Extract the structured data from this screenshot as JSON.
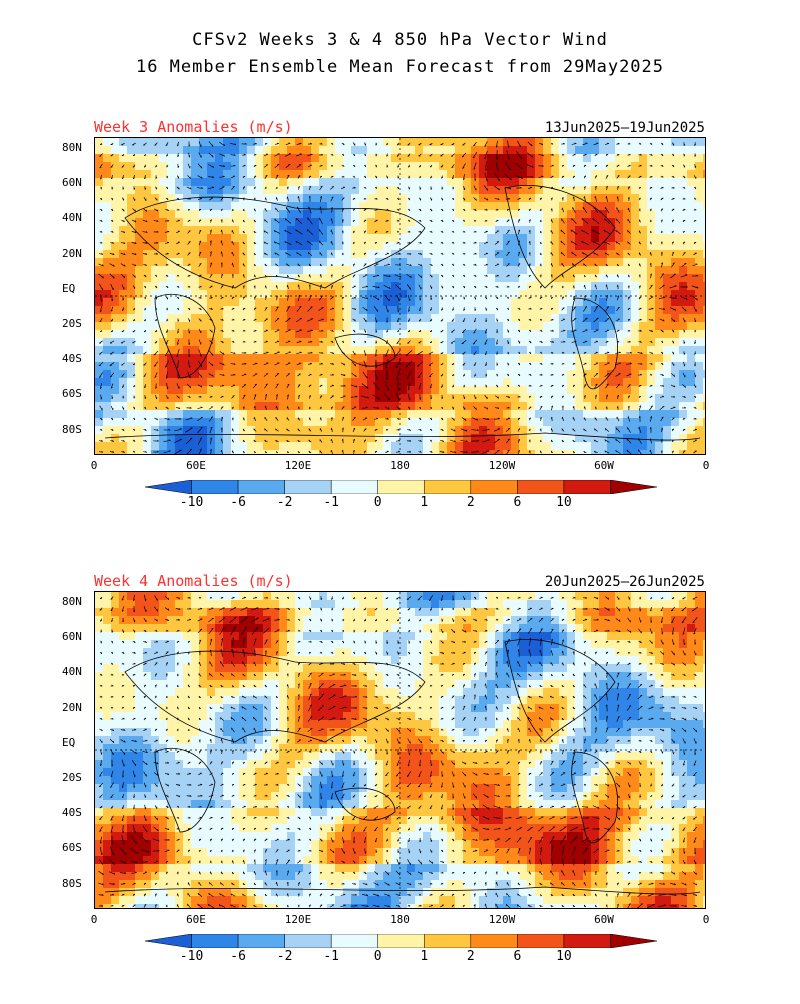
{
  "header": {
    "line1": "CFSv2 Weeks 3 & 4 850 hPa Vector Wind",
    "line2": "16 Member Ensemble Mean Forecast from 29May2025"
  },
  "panels": [
    {
      "title": "Week 3 Anomalies (m/s)",
      "dates": "13Jun2025—19Jun2025"
    },
    {
      "title": "Week 4 Anomalies (m/s)",
      "dates": "20Jun2025—26Jun2025"
    }
  ],
  "lat_labels": [
    "80N",
    "60N",
    "40N",
    "20N",
    "EQ",
    "20S",
    "40S",
    "60S",
    "80S"
  ],
  "lon_labels": [
    "0",
    "60E",
    "120E",
    "180",
    "120W",
    "60W",
    "0"
  ],
  "colorbar": {
    "labels": [
      "-10",
      "-6",
      "-2",
      "-1",
      "0",
      "1",
      "2",
      "6",
      "10"
    ],
    "colors": [
      "#1a5fd6",
      "#2f86e8",
      "#5aaaf0",
      "#a6d2f6",
      "#e8fbff",
      "#fff4a8",
      "#ffc640",
      "#ff8a1a",
      "#f2541a",
      "#d21a10",
      "#a00000"
    ]
  },
  "map_colors": {
    "land_outline": "#000000",
    "vector": "#000000"
  }
}
